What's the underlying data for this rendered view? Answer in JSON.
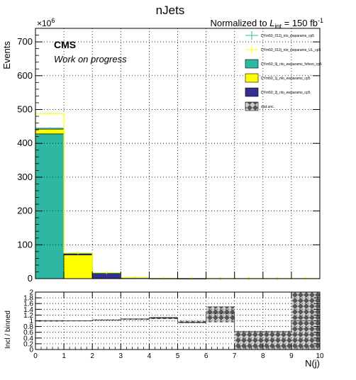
{
  "chart_data": [
    {
      "type": "bar",
      "title": "nJets",
      "normalization_text": "Normalized to L_int = 150 fb⁻¹",
      "normalization_prefix": "Normalized to ",
      "normalization_L": "L",
      "normalization_sub": "int",
      "normalization_suffix": " = 150 fb",
      "normalization_sup": "-1",
      "cms_label": "CMS",
      "cms_sub_label": "Work on progress",
      "ylabel": "Events",
      "yscale_exponent_base": "×10",
      "yscale_exponent": "6",
      "xlabel": "N(j)",
      "x_edges": [
        0,
        1,
        2,
        3,
        4,
        5,
        6,
        7,
        8,
        9,
        10
      ],
      "xlim": [
        0,
        10
      ],
      "ylim": [
        0,
        740
      ],
      "y_ticks": [
        0,
        100,
        200,
        300,
        400,
        500,
        600,
        700
      ],
      "stack": [
        {
          "name": "DYm50_0j_nlo_ewparams_fxfxon_cp5",
          "color": "#2eb8a4",
          "values": [
            428,
            0,
            0,
            0,
            0,
            0,
            0,
            0,
            0,
            0
          ]
        },
        {
          "name": "DYm50_1j_nlo_ewparams_cp5",
          "color": "#ffff00",
          "values": [
            14,
            70,
            0,
            0,
            0,
            0,
            0,
            0,
            0,
            0
          ]
        },
        {
          "name": "DYm50_2j_nlo_ewparams_cp5",
          "color": "#343092",
          "values": [
            3,
            5,
            17,
            2.5,
            0.4,
            0.1,
            0,
            0,
            0,
            0
          ]
        }
      ],
      "overlays": [
        {
          "name": "DYm50_012j_nlo_ewparams_cp5",
          "color": "#2eb8a4",
          "values": [
            444,
            75,
            17,
            2.5,
            0.5,
            0.1,
            0,
            0,
            0,
            0
          ]
        },
        {
          "name": "DYm50_012j_nlo_ewparams_UL_cp5",
          "color": "#ffff00",
          "values": [
            488,
            76,
            18,
            3,
            0.6,
            0.1,
            0.05,
            0,
            0,
            0
          ]
        }
      ],
      "uncertainty_name": "stat.unc.",
      "legend_order": [
        "DYm50_012j_nlo_ewparams_cp5",
        "DYm50_012j_nlo_ewparams_UL_cp5",
        "DYm50_0j_nlo_ewparams_fxfxon_cp5",
        "DYm50_1j_nlo_ewparams_cp5",
        "DYm50_2j_nlo_ewparams_cp5",
        "stat.unc."
      ],
      "legend_placement": "top-right",
      "grid": true
    },
    {
      "type": "bar",
      "ylabel": "Incl / binned",
      "xlabel": "N(j)",
      "xlim": [
        0,
        10
      ],
      "ylim": [
        0,
        2
      ],
      "y_ticks": [
        0,
        0.2,
        0.4,
        0.6,
        0.8,
        1,
        1.2,
        1.4,
        1.6,
        1.8,
        2
      ],
      "y_tick_labels": [
        "0",
        "0.2",
        "0.4",
        "0.6",
        "0.8",
        "1",
        "1.2",
        "1.4",
        "1.6",
        "1.8",
        "2"
      ],
      "x_ticks": [
        0,
        1,
        2,
        3,
        4,
        5,
        6,
        7,
        8,
        9,
        10
      ],
      "x_tick_labels": [
        "0",
        "1",
        "2",
        "3",
        "4",
        "5",
        "6",
        "7",
        "8",
        "9",
        "10"
      ],
      "ratio_values": [
        1.0,
        1.0,
        1.03,
        1.06,
        1.1,
        0.95,
        1.26,
        0.62,
        0.62,
        1.0
      ],
      "uncertainty_band": [
        {
          "low": 0.97,
          "high": 1.03
        },
        {
          "low": 0.98,
          "high": 1.02
        },
        {
          "low": 1.0,
          "high": 1.05
        },
        {
          "low": 1.03,
          "high": 1.08
        },
        {
          "low": 1.06,
          "high": 1.13
        },
        {
          "low": 0.92,
          "high": 1.0
        },
        {
          "low": 0.95,
          "high": 1.5
        },
        {
          "low": 0.0,
          "high": 0.65
        },
        {
          "low": 0.0,
          "high": 0.65
        },
        {
          "low": 0.0,
          "high": 2.0
        }
      ],
      "grid": true
    }
  ]
}
